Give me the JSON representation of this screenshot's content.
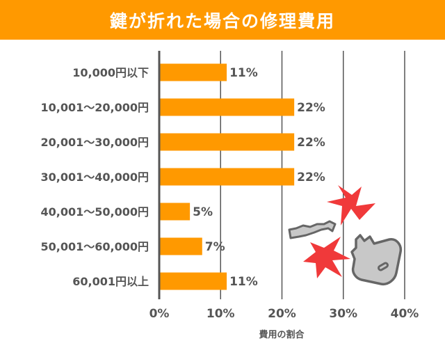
{
  "colors": {
    "accent": "#FF9900",
    "bar": "#FF9900",
    "axis": "#555555",
    "grid": "#555555",
    "text": "#555555",
    "flash": "#F0393A",
    "key_fill": "#C8C8C8",
    "key_stroke": "#666666"
  },
  "illustration": {
    "icon_names": [
      "broken-key-head-icon",
      "broken-key-blade-icon",
      "crack-flash-icon"
    ]
  },
  "chart_data": {
    "type": "bar",
    "orientation": "horizontal",
    "title": "鍵が折れた場合の修理費用",
    "xlabel": "費用の割合",
    "ylabel": "",
    "categories": [
      "10,000円以下",
      "10,001～20,000円",
      "20,001～30,000円",
      "30,001～40,000円",
      "40,001～50,000円",
      "50,001～60,000円",
      "60,001円以上"
    ],
    "values": [
      11,
      22,
      22,
      22,
      5,
      7,
      11
    ],
    "value_labels": [
      "11%",
      "22%",
      "22%",
      "22%",
      "5%",
      "7%",
      "11%"
    ],
    "xlim": [
      0,
      40
    ],
    "xticks": [
      "0%",
      "10%",
      "20%",
      "30%",
      "40%"
    ],
    "xtick_values": [
      0,
      10,
      20,
      30,
      40
    ],
    "grid": true
  }
}
